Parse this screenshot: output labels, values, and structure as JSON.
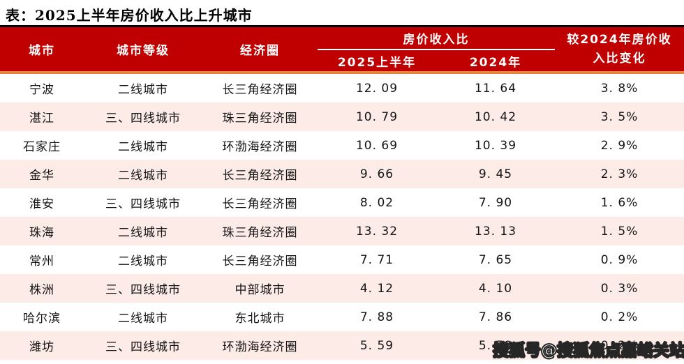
{
  "title": "表：2025上半年房价收入比上升城市",
  "table": {
    "headers": {
      "city": "城市",
      "tier": "城市等级",
      "circle": "经济圈",
      "ratio_group": "房价收入比",
      "h1_2025": "2025上半年",
      "y2024": "2024年",
      "change": "较2024年房价收入比变化"
    },
    "rows": [
      {
        "city": "宁波",
        "tier": "二线城市",
        "circle": "长三角经济圈",
        "h1_2025": "12. 09",
        "y2024": "11. 64",
        "change": "3. 8%"
      },
      {
        "city": "湛江",
        "tier": "三、四线城市",
        "circle": "珠三角经济圈",
        "h1_2025": "10. 79",
        "y2024": "10. 42",
        "change": "3. 5%"
      },
      {
        "city": "石家庄",
        "tier": "二线城市",
        "circle": "环渤海经济圈",
        "h1_2025": "10. 69",
        "y2024": "10. 39",
        "change": "2. 9%"
      },
      {
        "city": "金华",
        "tier": "二线城市",
        "circle": "长三角经济圈",
        "h1_2025": "9. 66",
        "y2024": "9. 45",
        "change": "2. 3%"
      },
      {
        "city": "淮安",
        "tier": "三、四线城市",
        "circle": "长三角经济圈",
        "h1_2025": "8. 02",
        "y2024": "7. 90",
        "change": "1. 6%"
      },
      {
        "city": "珠海",
        "tier": "二线城市",
        "circle": "珠三角经济圈",
        "h1_2025": "13. 32",
        "y2024": "13. 13",
        "change": "1. 5%"
      },
      {
        "city": "常州",
        "tier": "二线城市",
        "circle": "长三角经济圈",
        "h1_2025": "7. 71",
        "y2024": "7. 65",
        "change": "0. 9%"
      },
      {
        "city": "株洲",
        "tier": "三、四线城市",
        "circle": "中部城市",
        "h1_2025": "4. 12",
        "y2024": "4. 10",
        "change": "0. 3%"
      },
      {
        "city": "哈尔滨",
        "tier": "二线城市",
        "circle": "东北城市",
        "h1_2025": "7. 88",
        "y2024": "7. 86",
        "change": "0. 2%"
      },
      {
        "city": "潍坊",
        "tier": "三、四线城市",
        "circle": "环渤海经济圈",
        "h1_2025": "5. 59",
        "y2024": "5. 58",
        "change": "0. 2%"
      }
    ]
  },
  "watermark": "搜狐号@搜狐焦点嘉峪关站",
  "colors": {
    "header_red": "#c00000",
    "header_top_border": "#0a0202",
    "header_accent_orange": "#e8833a",
    "row_pink": "#fcebe6",
    "header_text": "#ffffff",
    "body_text": "#141414"
  }
}
